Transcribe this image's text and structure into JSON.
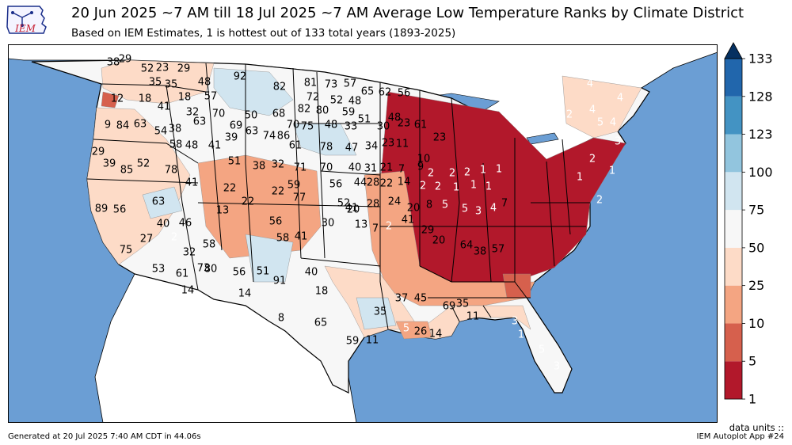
{
  "header": {
    "title": "20 Jun 2025 ~7 AM till 18 Jul 2025 ~7 AM Average Low Temperature Ranks by Climate District",
    "subtitle": "Based on IEM Estimates, 1 is hottest out of 133 total years (1893-2025)",
    "logo_text": "IEM"
  },
  "footer": {
    "generated": "Generated at 20 Jul 2025 7:40 AM CDT in 44.06s",
    "app": "IEM Autoplot App #24",
    "units": "data units ::"
  },
  "colors": {
    "water": "#6b9ed4",
    "land_outside": "#ffffff"
  },
  "colorbar": {
    "ticks": [
      "1",
      "5",
      "10",
      "25",
      "50",
      "75",
      "100",
      "123",
      "128",
      "133"
    ],
    "bins": [
      {
        "from": "1",
        "to": "5",
        "color": "#b2182b"
      },
      {
        "from": "5",
        "to": "10",
        "color": "#d6604d"
      },
      {
        "from": "10",
        "to": "25",
        "color": "#f4a582"
      },
      {
        "from": "25",
        "to": "50",
        "color": "#fddbc7"
      },
      {
        "from": "50",
        "to": "75",
        "color": "#f7f7f7"
      },
      {
        "from": "75",
        "to": "100",
        "color": "#d1e5f0"
      },
      {
        "from": "100",
        "to": "123",
        "color": "#92c5de"
      },
      {
        "from": "123",
        "to": "128",
        "color": "#4393c3"
      },
      {
        "from": "128",
        "to": "133",
        "color": "#2166ac"
      }
    ],
    "extend_color": "#053061"
  },
  "district_labels": [
    "38",
    "29",
    "52",
    "23",
    "29",
    "35",
    "35",
    "48",
    "92",
    "82",
    "81",
    "73",
    "57",
    "65",
    "62",
    "56",
    "72",
    "52",
    "48",
    "82",
    "80",
    "68",
    "59",
    "57",
    "12",
    "18",
    "41",
    "18",
    "32",
    "70",
    "50",
    "51",
    "48",
    "9",
    "84",
    "63",
    "54",
    "38",
    "63",
    "69",
    "63",
    "74",
    "86",
    "70",
    "75",
    "48",
    "33",
    "30",
    "23",
    "61",
    "58",
    "48",
    "41",
    "39",
    "61",
    "78",
    "47",
    "34",
    "23",
    "11",
    "10",
    "23",
    "29",
    "39",
    "85",
    "52",
    "78",
    "51",
    "38",
    "32",
    "71",
    "70",
    "40",
    "31",
    "21",
    "7",
    "9",
    "2",
    "2",
    "2",
    "1",
    "1",
    "89",
    "56",
    "63",
    "41",
    "22",
    "59",
    "56",
    "44",
    "28",
    "22",
    "14",
    "2",
    "2",
    "1",
    "1",
    "1",
    "75",
    "27",
    "40",
    "13",
    "22",
    "22",
    "77",
    "52",
    "41",
    "28",
    "24",
    "20",
    "8",
    "5",
    "5",
    "3",
    "4",
    "7",
    "2",
    "46",
    "32",
    "58",
    "56",
    "58",
    "41",
    "30",
    "20",
    "13",
    "7",
    "2",
    "41",
    "29",
    "20",
    "64",
    "38",
    "57",
    "53",
    "61",
    "73",
    "80",
    "56",
    "51",
    "91",
    "40",
    "18",
    "35",
    "37",
    "45",
    "69",
    "35",
    "11",
    "14",
    "14",
    "8",
    "65",
    "59",
    "11",
    "5",
    "26",
    "14",
    "3",
    "1",
    "5",
    "3",
    "4",
    "4",
    "2",
    "4",
    "5",
    "4",
    "2",
    "1",
    "3",
    "1",
    "2"
  ]
}
